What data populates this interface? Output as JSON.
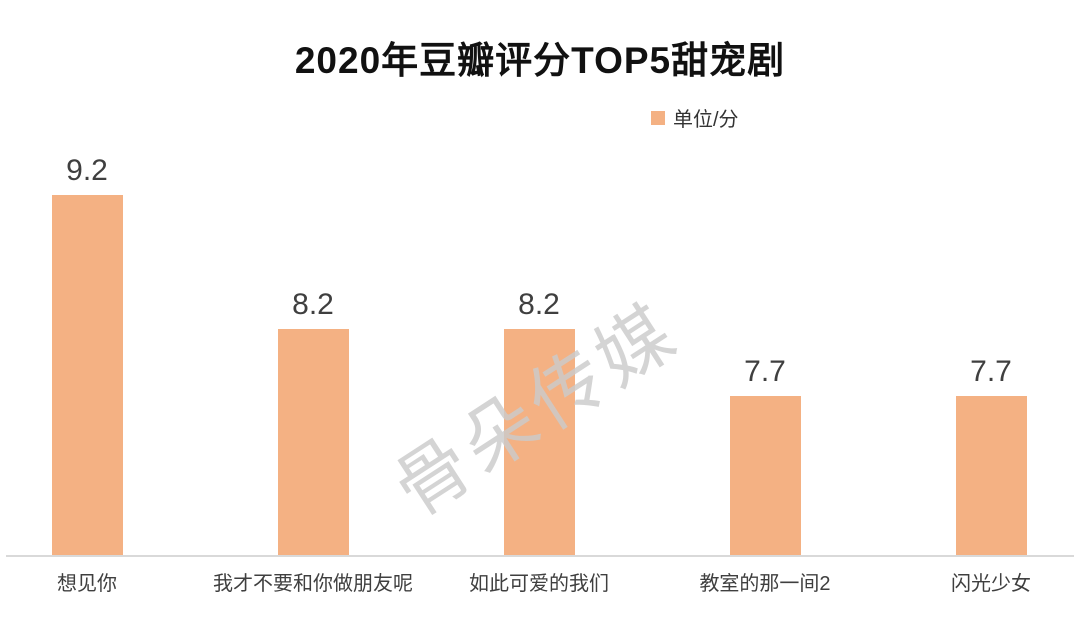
{
  "chart_data": {
    "type": "bar",
    "title": "2020年豆瓣评分TOP5甜宠剧",
    "categories": [
      "想见你",
      "我才不要和你做朋友呢",
      "如此可爱的我们",
      "教室的那一间2",
      "闪光少女"
    ],
    "values": [
      9.2,
      8.2,
      8.2,
      7.7,
      7.7
    ],
    "value_labels": [
      "9.2",
      "8.2",
      "8.2",
      "7.7",
      "7.7"
    ],
    "xlabel": "",
    "ylabel": "",
    "ylim": [
      6.5,
      9.5
    ],
    "grid": false,
    "legend_position": "top-right",
    "bar_color": "#F4B183"
  },
  "legend": {
    "label": "单位/分",
    "swatch_color": "#F4B183"
  },
  "watermark": {
    "text": "骨朵传媒"
  },
  "colors": {
    "bar": "#F4B183",
    "title_text": "#111111",
    "label_text": "#3F3F3F",
    "axis_line": "#D9D9D9"
  }
}
